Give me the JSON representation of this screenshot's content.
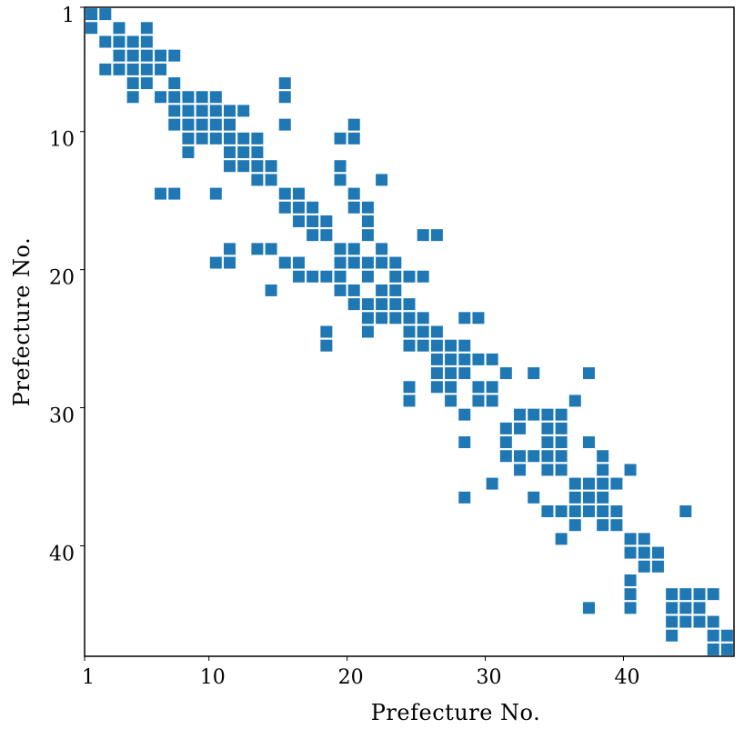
{
  "chart_data": {
    "type": "heatmap",
    "title": "",
    "xlabel": "Prefecture No.",
    "ylabel": "Prefecture  No.",
    "xlim": [
      1,
      47
    ],
    "ylim": [
      1,
      47
    ],
    "y_inverted": true,
    "grid": false,
    "legend": "none",
    "x_ticks": [
      {
        "value": 1,
        "label": "1"
      },
      {
        "value": 10,
        "label": "10"
      },
      {
        "value": 20,
        "label": "20"
      },
      {
        "value": 30,
        "label": "30"
      },
      {
        "value": 40,
        "label": "40"
      }
    ],
    "y_ticks": [
      {
        "value": 1,
        "label": "1"
      },
      {
        "value": 10,
        "label": "10"
      },
      {
        "value": 20,
        "label": "20"
      },
      {
        "value": 30,
        "label": "30"
      },
      {
        "value": 40,
        "label": "40"
      }
    ],
    "marker_color": "#1f77b4",
    "adjacency": [
      [
        1,
        1
      ],
      [
        1,
        2
      ],
      [
        2,
        1
      ],
      [
        2,
        3
      ],
      [
        2,
        5
      ],
      [
        3,
        2
      ],
      [
        3,
        3
      ],
      [
        3,
        4
      ],
      [
        3,
        5
      ],
      [
        4,
        3
      ],
      [
        4,
        4
      ],
      [
        4,
        5
      ],
      [
        4,
        6
      ],
      [
        4,
        7
      ],
      [
        5,
        2
      ],
      [
        5,
        3
      ],
      [
        5,
        4
      ],
      [
        5,
        5
      ],
      [
        5,
        6
      ],
      [
        6,
        4
      ],
      [
        6,
        5
      ],
      [
        6,
        7
      ],
      [
        6,
        15
      ],
      [
        7,
        4
      ],
      [
        7,
        6
      ],
      [
        7,
        7
      ],
      [
        7,
        8
      ],
      [
        7,
        9
      ],
      [
        7,
        10
      ],
      [
        7,
        15
      ],
      [
        8,
        7
      ],
      [
        8,
        8
      ],
      [
        8,
        9
      ],
      [
        8,
        10
      ],
      [
        8,
        11
      ],
      [
        8,
        12
      ],
      [
        9,
        7
      ],
      [
        9,
        8
      ],
      [
        9,
        9
      ],
      [
        9,
        10
      ],
      [
        9,
        11
      ],
      [
        9,
        15
      ],
      [
        9,
        20
      ],
      [
        10,
        8
      ],
      [
        10,
        9
      ],
      [
        10,
        10
      ],
      [
        10,
        11
      ],
      [
        10,
        12
      ],
      [
        10,
        13
      ],
      [
        10,
        19
      ],
      [
        10,
        20
      ],
      [
        11,
        8
      ],
      [
        11,
        11
      ],
      [
        11,
        12
      ],
      [
        11,
        13
      ],
      [
        12,
        11
      ],
      [
        12,
        12
      ],
      [
        12,
        13
      ],
      [
        12,
        14
      ],
      [
        12,
        19
      ],
      [
        13,
        13
      ],
      [
        13,
        14
      ],
      [
        13,
        19
      ],
      [
        13,
        22
      ],
      [
        14,
        6
      ],
      [
        14,
        7
      ],
      [
        14,
        10
      ],
      [
        14,
        15
      ],
      [
        14,
        16
      ],
      [
        14,
        20
      ],
      [
        15,
        15
      ],
      [
        15,
        16
      ],
      [
        15,
        17
      ],
      [
        15,
        20
      ],
      [
        15,
        21
      ],
      [
        16,
        16
      ],
      [
        16,
        17
      ],
      [
        16,
        18
      ],
      [
        16,
        21
      ],
      [
        17,
        17
      ],
      [
        17,
        18
      ],
      [
        17,
        21
      ],
      [
        17,
        25
      ],
      [
        17,
        26
      ],
      [
        18,
        11
      ],
      [
        18,
        13
      ],
      [
        18,
        14
      ],
      [
        18,
        19
      ],
      [
        18,
        20
      ],
      [
        18,
        22
      ],
      [
        19,
        10
      ],
      [
        19,
        11
      ],
      [
        19,
        15
      ],
      [
        19,
        16
      ],
      [
        19,
        19
      ],
      [
        19,
        20
      ],
      [
        19,
        21
      ],
      [
        19,
        22
      ],
      [
        19,
        23
      ],
      [
        20,
        16
      ],
      [
        20,
        17
      ],
      [
        20,
        18
      ],
      [
        20,
        19
      ],
      [
        20,
        21
      ],
      [
        20,
        23
      ],
      [
        20,
        24
      ],
      [
        20,
        25
      ],
      [
        21,
        14
      ],
      [
        21,
        19
      ],
      [
        21,
        20
      ],
      [
        21,
        22
      ],
      [
        21,
        23
      ],
      [
        22,
        20
      ],
      [
        22,
        21
      ],
      [
        22,
        22
      ],
      [
        22,
        23
      ],
      [
        22,
        24
      ],
      [
        23,
        21
      ],
      [
        23,
        22
      ],
      [
        23,
        23
      ],
      [
        23,
        24
      ],
      [
        23,
        25
      ],
      [
        23,
        28
      ],
      [
        23,
        29
      ],
      [
        24,
        18
      ],
      [
        24,
        21
      ],
      [
        24,
        24
      ],
      [
        24,
        25
      ],
      [
        24,
        26
      ],
      [
        25,
        18
      ],
      [
        25,
        24
      ],
      [
        25,
        25
      ],
      [
        25,
        26
      ],
      [
        25,
        27
      ],
      [
        25,
        28
      ],
      [
        26,
        26
      ],
      [
        26,
        27
      ],
      [
        26,
        28
      ],
      [
        26,
        29
      ],
      [
        26,
        30
      ],
      [
        27,
        26
      ],
      [
        27,
        27
      ],
      [
        27,
        28
      ],
      [
        27,
        31
      ],
      [
        27,
        33
      ],
      [
        27,
        37
      ],
      [
        28,
        24
      ],
      [
        28,
        26
      ],
      [
        28,
        27
      ],
      [
        28,
        29
      ],
      [
        28,
        30
      ],
      [
        29,
        24
      ],
      [
        29,
        27
      ],
      [
        29,
        29
      ],
      [
        29,
        30
      ],
      [
        29,
        36
      ],
      [
        30,
        28
      ],
      [
        30,
        32
      ],
      [
        30,
        33
      ],
      [
        30,
        34
      ],
      [
        30,
        35
      ],
      [
        31,
        31
      ],
      [
        31,
        32
      ],
      [
        31,
        34
      ],
      [
        31,
        35
      ],
      [
        32,
        28
      ],
      [
        32,
        31
      ],
      [
        32,
        34
      ],
      [
        32,
        35
      ],
      [
        32,
        37
      ],
      [
        33,
        31
      ],
      [
        33,
        32
      ],
      [
        33,
        33
      ],
      [
        33,
        34
      ],
      [
        33,
        35
      ],
      [
        33,
        38
      ],
      [
        34,
        32
      ],
      [
        34,
        34
      ],
      [
        34,
        35
      ],
      [
        34,
        38
      ],
      [
        34,
        40
      ],
      [
        35,
        30
      ],
      [
        35,
        36
      ],
      [
        35,
        37
      ],
      [
        35,
        38
      ],
      [
        35,
        39
      ],
      [
        36,
        28
      ],
      [
        36,
        33
      ],
      [
        36,
        36
      ],
      [
        36,
        37
      ],
      [
        36,
        38
      ],
      [
        37,
        34
      ],
      [
        37,
        35
      ],
      [
        37,
        36
      ],
      [
        37,
        37
      ],
      [
        37,
        38
      ],
      [
        37,
        39
      ],
      [
        37,
        44
      ],
      [
        38,
        36
      ],
      [
        38,
        38
      ],
      [
        38,
        39
      ],
      [
        39,
        35
      ],
      [
        39,
        40
      ],
      [
        39,
        41
      ],
      [
        40,
        40
      ],
      [
        40,
        41
      ],
      [
        40,
        42
      ],
      [
        41,
        41
      ],
      [
        41,
        42
      ],
      [
        42,
        40
      ],
      [
        43,
        40
      ],
      [
        43,
        43
      ],
      [
        43,
        44
      ],
      [
        43,
        45
      ],
      [
        43,
        46
      ],
      [
        44,
        37
      ],
      [
        44,
        40
      ],
      [
        44,
        43
      ],
      [
        44,
        44
      ],
      [
        44,
        45
      ],
      [
        45,
        43
      ],
      [
        45,
        44
      ],
      [
        45,
        45
      ],
      [
        45,
        46
      ],
      [
        46,
        43
      ],
      [
        46,
        46
      ],
      [
        46,
        47
      ],
      [
        47,
        46
      ],
      [
        47,
        47
      ]
    ]
  }
}
